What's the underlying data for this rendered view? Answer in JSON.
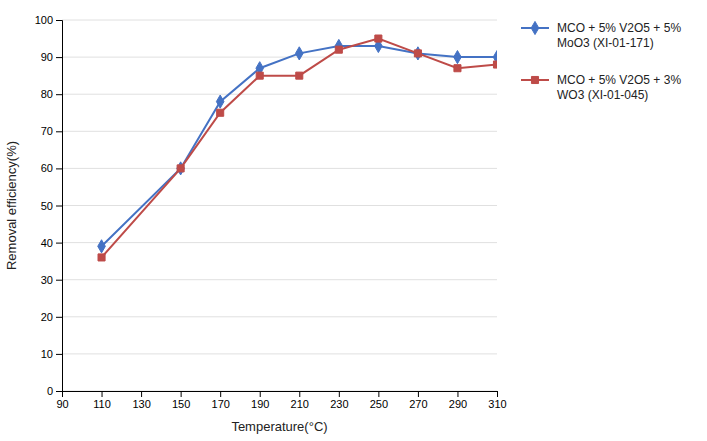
{
  "chart_data": {
    "type": "line",
    "x": [
      110,
      150,
      170,
      190,
      210,
      230,
      250,
      270,
      290,
      310
    ],
    "series": [
      {
        "name": "MCO + 5% V2O5 + 5%\nMoO3 (XI-01-171)",
        "color": "#4472C4",
        "marker": "diamond",
        "values": [
          39,
          60,
          78,
          87,
          91,
          93,
          93,
          91,
          90,
          90
        ]
      },
      {
        "name": "MCO + 5% V2O5 + 3%\nWO3 (XI-01-045)",
        "color": "#BE4B48",
        "marker": "square",
        "values": [
          36,
          60,
          75,
          85,
          85,
          92,
          95,
          91,
          87,
          88
        ]
      }
    ],
    "xlabel": "Temperature(°C)",
    "ylabel": "Removal efficiency(%)",
    "xlim": [
      90,
      310
    ],
    "ylim": [
      0,
      100
    ],
    "xticks": [
      90,
      110,
      130,
      150,
      170,
      190,
      210,
      230,
      250,
      270,
      290,
      310
    ],
    "yticks": [
      0,
      10,
      20,
      30,
      40,
      50,
      60,
      70,
      80,
      90,
      100
    ],
    "grid": "y",
    "legend": "right"
  }
}
